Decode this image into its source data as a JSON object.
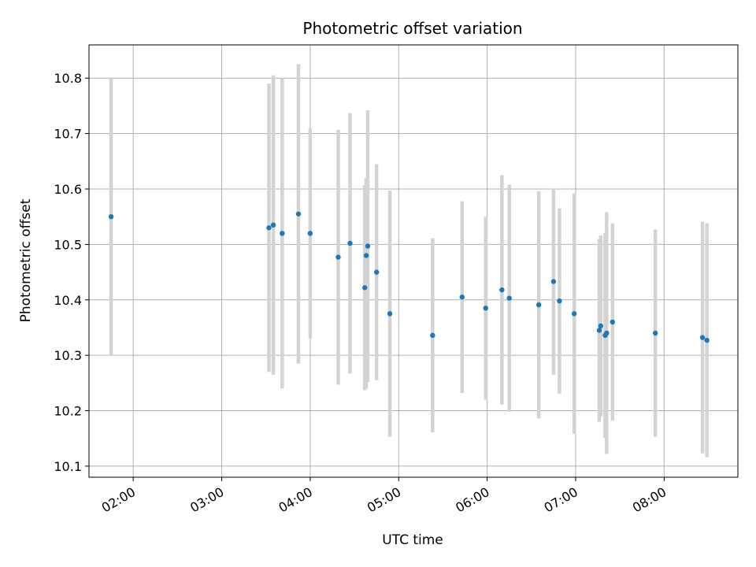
{
  "chart_data": {
    "type": "scatter",
    "title": "Photometric offset variation",
    "xlabel": "UTC time",
    "ylabel": "Photometric offset",
    "x_unit": "hours UTC",
    "xlim": [
      "01:30",
      "08:50"
    ],
    "ylim": [
      10.08,
      10.86
    ],
    "x_ticks": [
      "02:00",
      "03:00",
      "04:00",
      "05:00",
      "06:00",
      "07:00",
      "08:00"
    ],
    "y_ticks": [
      "10.1",
      "10.2",
      "10.3",
      "10.4",
      "10.5",
      "10.6",
      "10.7",
      "10.8"
    ],
    "grid": true,
    "legend": "none",
    "colors": {
      "point": "#1f77b4",
      "errorbar": "#d3d3d3",
      "grid": "#b0b0b0"
    },
    "points": [
      {
        "x": "01:45",
        "y": 10.55,
        "low": 10.3,
        "high": 10.8
      },
      {
        "x": "03:32",
        "y": 10.53,
        "low": 10.27,
        "high": 10.79
      },
      {
        "x": "03:35",
        "y": 10.535,
        "low": 10.265,
        "high": 10.805
      },
      {
        "x": "03:41",
        "y": 10.52,
        "low": 10.24,
        "high": 10.8
      },
      {
        "x": "03:52",
        "y": 10.555,
        "low": 10.285,
        "high": 10.825
      },
      {
        "x": "04:00",
        "y": 10.52,
        "low": 10.33,
        "high": 10.71
      },
      {
        "x": "04:19",
        "y": 10.477,
        "low": 10.247,
        "high": 10.707
      },
      {
        "x": "04:27",
        "y": 10.502,
        "low": 10.267,
        "high": 10.737
      },
      {
        "x": "04:37",
        "y": 10.422,
        "low": 10.237,
        "high": 10.607
      },
      {
        "x": "04:38",
        "y": 10.48,
        "low": 10.24,
        "high": 10.62
      },
      {
        "x": "04:39",
        "y": 10.497,
        "low": 10.252,
        "high": 10.742
      },
      {
        "x": "04:45",
        "y": 10.45,
        "low": 10.255,
        "high": 10.645
      },
      {
        "x": "04:54",
        "y": 10.375,
        "low": 10.153,
        "high": 10.597
      },
      {
        "x": "05:23",
        "y": 10.336,
        "low": 10.161,
        "high": 10.511
      },
      {
        "x": "05:43",
        "y": 10.405,
        "low": 10.232,
        "high": 10.578
      },
      {
        "x": "05:59",
        "y": 10.385,
        "low": 10.22,
        "high": 10.55
      },
      {
        "x": "06:10",
        "y": 10.418,
        "low": 10.211,
        "high": 10.625
      },
      {
        "x": "06:15",
        "y": 10.403,
        "low": 10.198,
        "high": 10.608
      },
      {
        "x": "06:35",
        "y": 10.391,
        "low": 10.186,
        "high": 10.596
      },
      {
        "x": "06:45",
        "y": 10.433,
        "low": 10.265,
        "high": 10.601
      },
      {
        "x": "06:49",
        "y": 10.398,
        "low": 10.231,
        "high": 10.565
      },
      {
        "x": "06:59",
        "y": 10.375,
        "low": 10.158,
        "high": 10.592
      },
      {
        "x": "07:16",
        "y": 10.345,
        "low": 10.18,
        "high": 10.51
      },
      {
        "x": "07:17",
        "y": 10.353,
        "low": 10.19,
        "high": 10.516
      },
      {
        "x": "07:20",
        "y": 10.336,
        "low": 10.151,
        "high": 10.521
      },
      {
        "x": "07:21",
        "y": 10.34,
        "low": 10.122,
        "high": 10.558
      },
      {
        "x": "07:25",
        "y": 10.36,
        "low": 10.182,
        "high": 10.538
      },
      {
        "x": "07:54",
        "y": 10.34,
        "low": 10.153,
        "high": 10.527
      },
      {
        "x": "08:26",
        "y": 10.332,
        "low": 10.123,
        "high": 10.541
      },
      {
        "x": "08:29",
        "y": 10.327,
        "low": 10.116,
        "high": 10.538
      }
    ]
  }
}
